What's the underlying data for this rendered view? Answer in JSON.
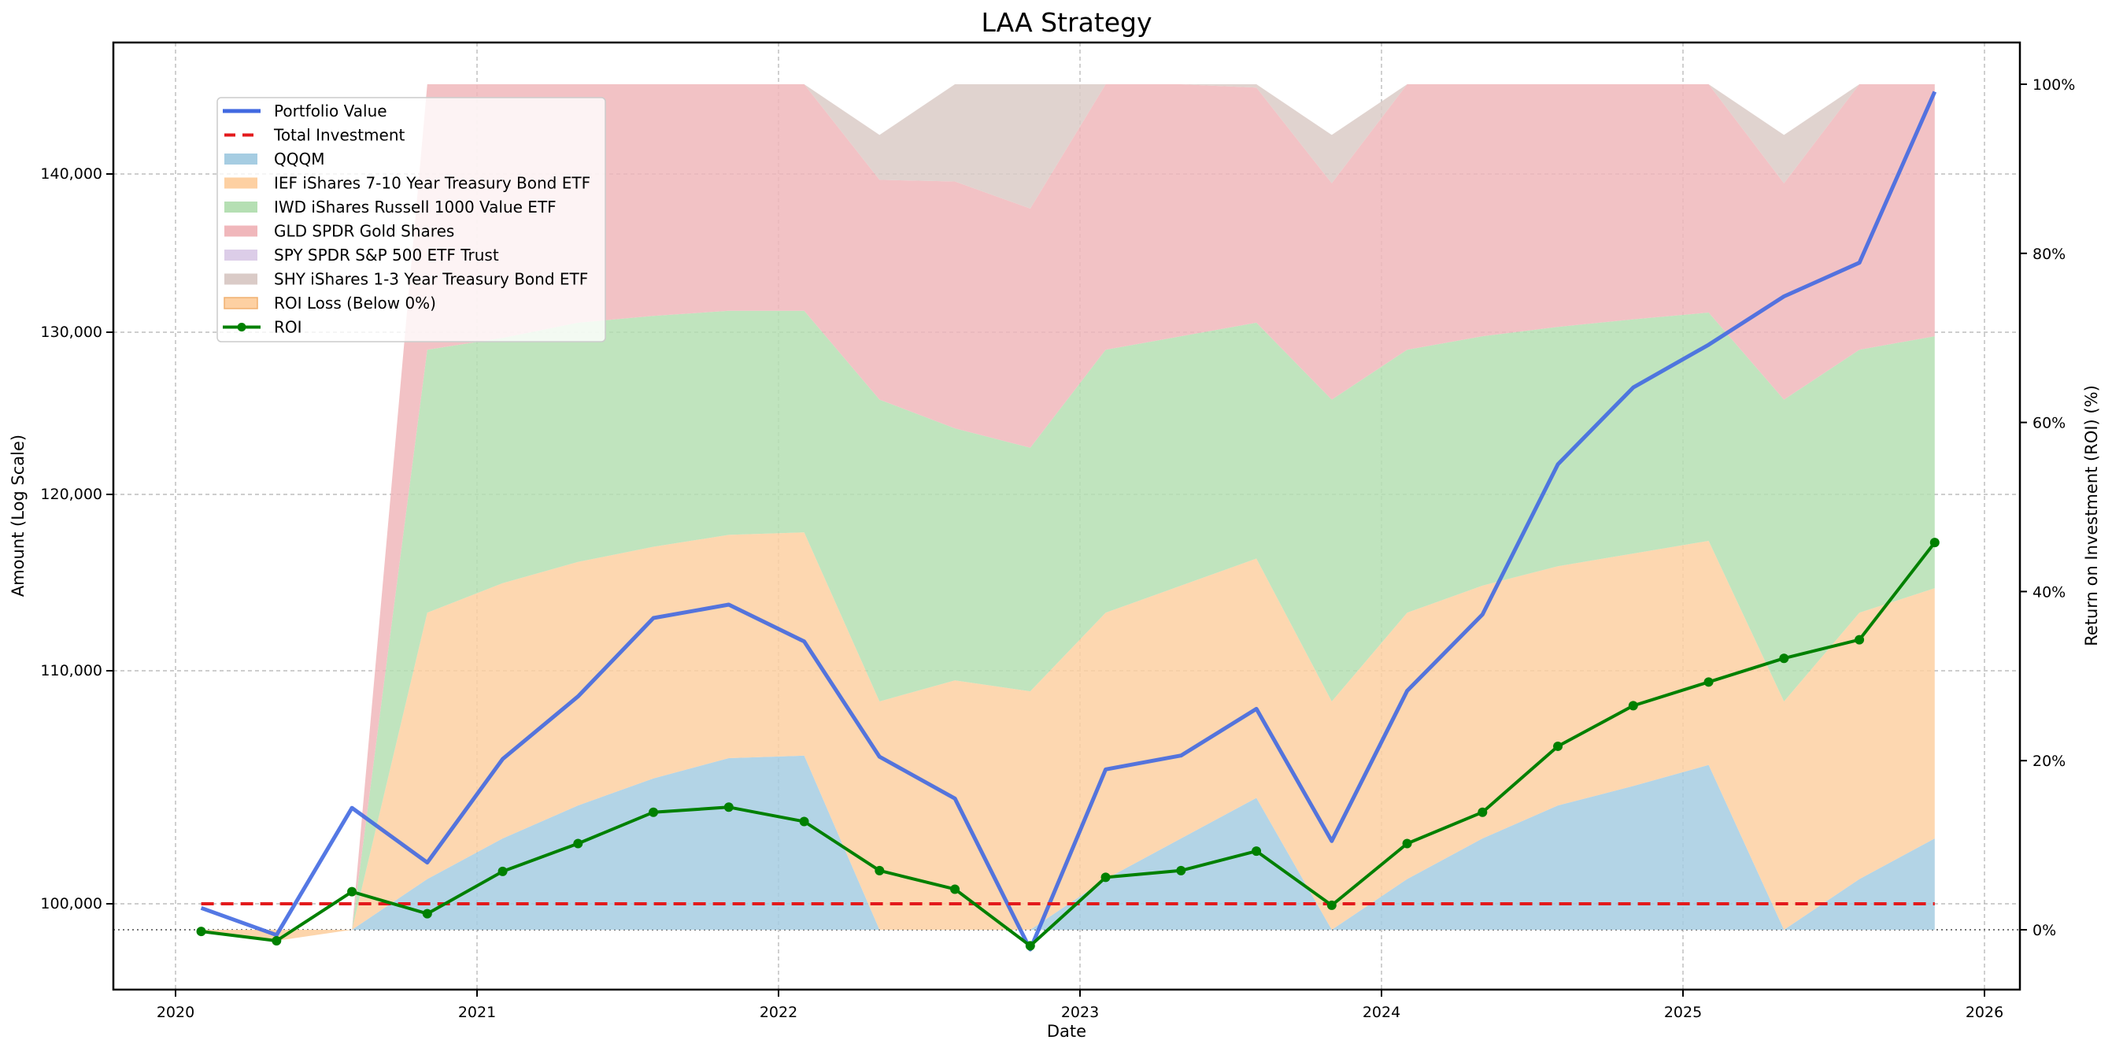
{
  "chart_data": {
    "type": "line",
    "title": "LAA Strategy",
    "xlabel": "Date",
    "ylabel": "Amount (Log Scale)",
    "y2label": "Return on Investment (ROI) (%)",
    "x_ticks": [
      "2020",
      "2021",
      "2022",
      "2023",
      "2024",
      "2025",
      "2026"
    ],
    "y_ticks": [
      {
        "value": 100000,
        "label": "100,000"
      },
      {
        "value": 110000,
        "label": "110,000"
      },
      {
        "value": 120000,
        "label": "120,000"
      },
      {
        "value": 130000,
        "label": "130,000"
      },
      {
        "value": 140000,
        "label": "140,000"
      }
    ],
    "y2_ticks": [
      {
        "value": 0,
        "label": "0%"
      },
      {
        "value": 20,
        "label": "20%"
      },
      {
        "value": 40,
        "label": "40%"
      },
      {
        "value": 60,
        "label": "60%"
      },
      {
        "value": 80,
        "label": "80%"
      },
      {
        "value": 100,
        "label": "100%"
      }
    ],
    "xlim": [
      2019.79,
      2026.09
    ],
    "ylim_scale": "log",
    "ylim": [
      96700,
      147800
    ],
    "y2lim": [
      -6.8,
      106.3
    ],
    "grid": true,
    "legend_position": "upper-left",
    "x": [
      "2020-02",
      "2020-05",
      "2020-08",
      "2020-11",
      "2021-02",
      "2021-05",
      "2021-08",
      "2021-11",
      "2022-02",
      "2022-05",
      "2022-08",
      "2022-11",
      "2023-02",
      "2023-05",
      "2023-08",
      "2023-11",
      "2024-02",
      "2024-05",
      "2024-08",
      "2024-11",
      "2025-02",
      "2025-05",
      "2025-08",
      "2025-11"
    ],
    "series": [
      {
        "name": "Portfolio Value",
        "axis": "left",
        "kind": "line",
        "color": "#4169e1",
        "values": [
          99830,
          98730,
          104000,
          101700,
          106100,
          108850,
          112900,
          113650,
          111600,
          106200,
          104400,
          98150,
          105650,
          106250,
          108300,
          102600,
          109100,
          113100,
          121800,
          126500,
          129200,
          132200,
          134300,
          145500
        ]
      },
      {
        "name": "Total Investment",
        "axis": "left",
        "kind": "dashed",
        "color": "#e31a1c",
        "values": [
          100000,
          100000,
          100000,
          100000,
          100000,
          100000,
          100000,
          100000,
          100000,
          100000,
          100000,
          100000,
          100000,
          100000,
          100000,
          100000,
          100000,
          100000,
          100000,
          100000,
          100000,
          100000,
          100000,
          100000
        ]
      },
      {
        "name": "ROI",
        "axis": "right",
        "kind": "line-marker",
        "color": "#008000",
        "values": [
          -0.2,
          -1.3,
          4.5,
          1.9,
          6.9,
          10.2,
          13.9,
          14.5,
          12.8,
          7.0,
          4.8,
          -1.9,
          6.2,
          7.0,
          9.3,
          2.9,
          10.2,
          13.9,
          21.7,
          26.5,
          29.3,
          32.1,
          34.3,
          45.8
        ]
      }
    ],
    "allocation_stack": {
      "axis": "right",
      "unit": "%",
      "series": [
        {
          "name": "QQQM",
          "color": "#a6cde2",
          "values": [
            0,
            0,
            0,
            6.0,
            10.8,
            14.7,
            17.9,
            20.3,
            20.6,
            0,
            0,
            0,
            6.0,
            10.8,
            15.6,
            0,
            6.0,
            10.8,
            14.7,
            17.0,
            19.5,
            0,
            6.0,
            10.8
          ]
        },
        {
          "name": "IEF iShares 7-10 Year Treasury Bond ETF",
          "color": "#fdd0a2",
          "values": [
            0,
            0,
            0,
            31.5,
            30.2,
            28.8,
            27.4,
            26.4,
            26.4,
            27.0,
            29.5,
            28.2,
            31.5,
            29.9,
            28.3,
            27.0,
            31.5,
            29.9,
            28.3,
            27.5,
            26.5,
            27.0,
            31.5,
            29.6
          ]
        },
        {
          "name": "IWD iShares Russell 1000 Value ETF",
          "color": "#b5dfb3",
          "values": [
            0,
            0,
            0,
            31.1,
            29.0,
            28.3,
            27.3,
            26.5,
            26.2,
            35.7,
            29.8,
            28.8,
            31.1,
            29.5,
            27.9,
            35.7,
            31.1,
            29.5,
            28.3,
            27.7,
            27.0,
            35.7,
            31.1,
            29.8
          ]
        },
        {
          "name": "GLD SPDR Gold Shares",
          "color": "#f0b7bb",
          "values": [
            0,
            0,
            0,
            31.4,
            30.0,
            28.2,
            27.4,
            26.8,
            26.8,
            26.0,
            29.2,
            28.3,
            31.4,
            29.8,
            27.8,
            25.6,
            31.4,
            29.8,
            28.7,
            27.8,
            27.0,
            25.6,
            31.4,
            29.8
          ]
        },
        {
          "name": "SPY SPDR S&P 500 ETF Trust",
          "color": "#dccde8",
          "values": [
            0,
            0,
            0,
            0,
            0,
            0,
            0,
            0,
            0,
            0,
            0,
            0,
            0,
            0,
            0,
            0,
            0,
            0,
            0,
            0,
            0,
            0,
            0,
            0
          ]
        },
        {
          "name": "SHY iShares 1-3 Year Treasury Bond ETF",
          "color": "#dacbc7",
          "values": [
            0,
            0,
            0,
            0,
            0,
            0,
            0,
            0,
            0,
            5.3,
            11.5,
            14.7,
            0,
            0,
            0.4,
            5.7,
            0,
            0,
            0,
            0,
            0,
            5.7,
            0,
            0
          ]
        }
      ]
    },
    "roi_loss_fill": {
      "name": "ROI Loss (Below 0%)",
      "color": "#fdd0a2",
      "edge": "#f0b070"
    },
    "legend": [
      {
        "label": "Portfolio Value",
        "kind": "line",
        "color": "#4169e1"
      },
      {
        "label": "Total Investment",
        "kind": "dashed",
        "color": "#e31a1c"
      },
      {
        "label": "QQQM",
        "kind": "patch",
        "color": "#a6cde2"
      },
      {
        "label": "IEF iShares 7-10 Year Treasury Bond ETF",
        "kind": "patch",
        "color": "#fdd0a2"
      },
      {
        "label": "IWD iShares Russell 1000 Value ETF",
        "kind": "patch",
        "color": "#b5dfb3"
      },
      {
        "label": "GLD SPDR Gold Shares",
        "kind": "patch",
        "color": "#f0b7bb"
      },
      {
        "label": "SPY SPDR S&P 500 ETF Trust",
        "kind": "patch",
        "color": "#dccde8"
      },
      {
        "label": "SHY iShares 1-3 Year Treasury Bond ETF",
        "kind": "patch",
        "color": "#dacbc7"
      },
      {
        "label": "ROI Loss (Below 0%)",
        "kind": "patch-edge",
        "color": "#fdd0a2"
      },
      {
        "label": "ROI",
        "kind": "line-marker",
        "color": "#008000"
      }
    ]
  }
}
